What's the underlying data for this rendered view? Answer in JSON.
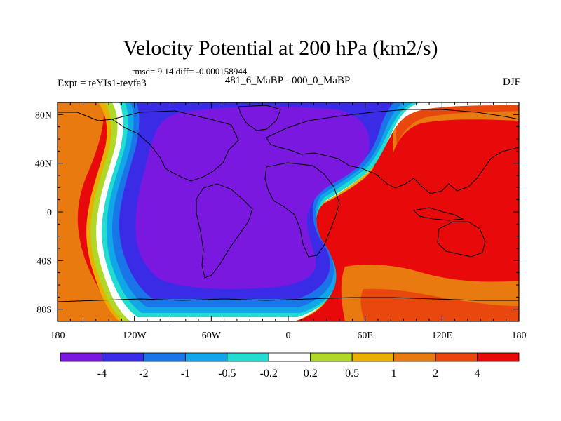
{
  "chart_data": {
    "type": "heatmap",
    "title": "Velocity Potential at 200 hPa (km2/s)",
    "stats_line": "rmsd= 9.14 diff= -0.000158944",
    "experiment": "Expt = teYIs1-teyfa3",
    "subtitle": "481_6_MaBP - 000_0_MaBP",
    "season": "DJF",
    "x_ticks": [
      "180",
      "120W",
      "60W",
      "0",
      "60E",
      "120E",
      "180"
    ],
    "x_tick_values": [
      -180,
      -120,
      -60,
      0,
      60,
      120,
      180
    ],
    "y_ticks": [
      "80N",
      "40N",
      "0",
      "40S",
      "80S"
    ],
    "y_tick_values": [
      80,
      40,
      0,
      -40,
      -80
    ],
    "xlim": [
      -180,
      180
    ],
    "ylim": [
      -90,
      90
    ],
    "colorbar": {
      "labels": [
        "-4",
        "-2",
        "-1",
        "-0.5",
        "-0.2",
        "0.2",
        "0.5",
        "1",
        "2",
        "4"
      ],
      "colors": [
        "#7a18e0",
        "#3a2ce6",
        "#1a76e8",
        "#10a6e8",
        "#20ddd0",
        "#ffffff",
        "#b0d828",
        "#e8b000",
        "#e87a10",
        "#e8480e",
        "#e80a0a"
      ]
    },
    "regions": [
      {
        "level": "> 4",
        "color": "#e80a0a",
        "description": "Eastern Hemisphere maximum (Africa, Asia, Indian Ocean, Australia, western Pacific)"
      },
      {
        "level": "< -4",
        "color": "#7a18e0",
        "description": "Western Hemisphere minimum (Americas, Atlantic)"
      }
    ]
  }
}
